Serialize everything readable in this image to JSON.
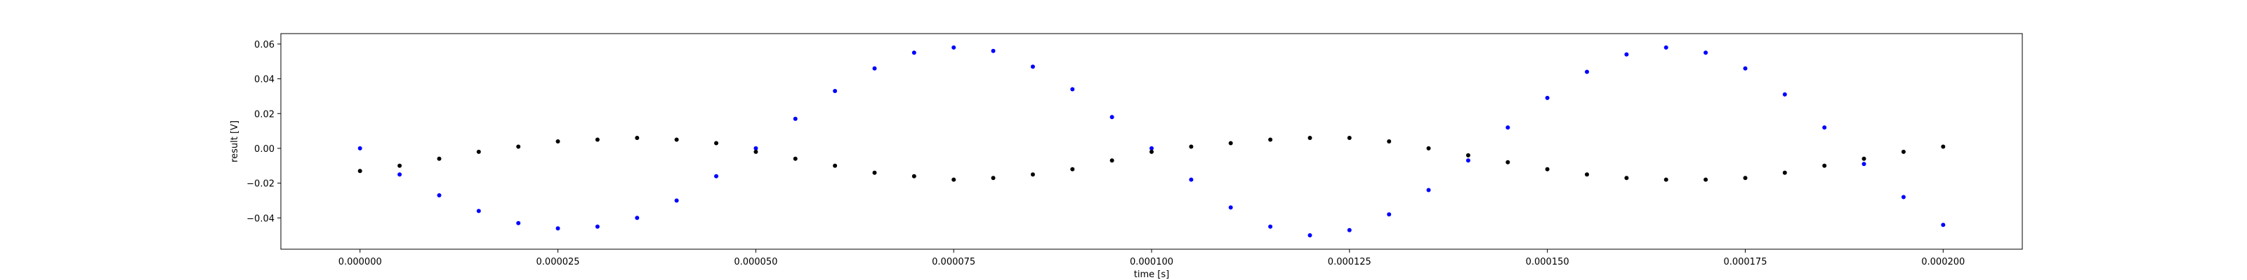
{
  "chart_data": {
    "type": "scatter",
    "title": "",
    "xlabel": "time [s]",
    "ylabel": "result [V]",
    "xlim": [
      -1e-05,
      0.00021
    ],
    "ylim": [
      -0.058,
      0.066
    ],
    "grid": false,
    "legend": "none",
    "x_ticks": [
      0.0,
      2.5e-05,
      5e-05,
      7.5e-05,
      0.0001,
      0.000125,
      0.00015,
      0.000175,
      0.0002
    ],
    "x_tick_labels": [
      "0.000000",
      "0.000025",
      "0.000050",
      "0.000075",
      "0.000100",
      "0.000125",
      "0.000150",
      "0.000175",
      "0.000200"
    ],
    "y_ticks": [
      -0.04,
      -0.02,
      0.0,
      0.02,
      0.04,
      0.06
    ],
    "y_tick_labels": [
      "−0.04",
      "−0.02",
      "0.00",
      "0.02",
      "0.04",
      "0.06"
    ],
    "series": [
      {
        "color": "#0000ff",
        "marker": "dot",
        "x": [
          0.0,
          5e-06,
          1e-05,
          1.5e-05,
          2e-05,
          2.5e-05,
          3e-05,
          3.5e-05,
          4e-05,
          4.5e-05,
          5e-05,
          5.5e-05,
          6e-05,
          6.5e-05,
          7e-05,
          7.5e-05,
          8e-05,
          8.5e-05,
          9e-05,
          9.5e-05,
          0.0001,
          0.000105,
          0.00011,
          0.000115,
          0.00012,
          0.000125,
          0.00013,
          0.000135,
          0.00014,
          0.000145,
          0.00015,
          0.000155,
          0.00016,
          0.000165,
          0.00017,
          0.000175,
          0.00018,
          0.000185,
          0.00019,
          0.000195,
          0.0002
        ],
        "y": [
          0.0,
          -0.015,
          -0.027,
          -0.036,
          -0.043,
          -0.046,
          -0.045,
          -0.04,
          -0.03,
          -0.016,
          0.0,
          0.017,
          0.033,
          0.046,
          0.055,
          0.058,
          0.056,
          0.047,
          0.034,
          0.018,
          0.0,
          -0.018,
          -0.034,
          -0.045,
          -0.05,
          -0.047,
          -0.038,
          -0.024,
          -0.007,
          0.012,
          0.029,
          0.044,
          0.054,
          0.058,
          0.055,
          0.046,
          0.031,
          0.012,
          -0.009,
          -0.028,
          -0.044
        ]
      },
      {
        "color": "#000000",
        "marker": "dot",
        "x": [
          0.0,
          5e-06,
          1e-05,
          1.5e-05,
          2e-05,
          2.5e-05,
          3e-05,
          3.5e-05,
          4e-05,
          4.5e-05,
          5e-05,
          5.5e-05,
          6e-05,
          6.5e-05,
          7e-05,
          7.5e-05,
          8e-05,
          8.5e-05,
          9e-05,
          9.5e-05,
          0.0001,
          0.000105,
          0.00011,
          0.000115,
          0.00012,
          0.000125,
          0.00013,
          0.000135,
          0.00014,
          0.000145,
          0.00015,
          0.000155,
          0.00016,
          0.000165,
          0.00017,
          0.000175,
          0.00018,
          0.000185,
          0.00019,
          0.000195,
          0.0002
        ],
        "y": [
          -0.013,
          -0.01,
          -0.006,
          -0.002,
          0.001,
          0.004,
          0.005,
          0.006,
          0.005,
          0.003,
          -0.002,
          -0.006,
          -0.01,
          -0.014,
          -0.016,
          -0.018,
          -0.017,
          -0.015,
          -0.012,
          -0.007,
          -0.002,
          0.001,
          0.003,
          0.005,
          0.006,
          0.006,
          0.004,
          0.0,
          -0.004,
          -0.008,
          -0.012,
          -0.015,
          -0.017,
          -0.018,
          -0.018,
          -0.017,
          -0.014,
          -0.01,
          -0.006,
          -0.002,
          0.001
        ]
      }
    ]
  }
}
